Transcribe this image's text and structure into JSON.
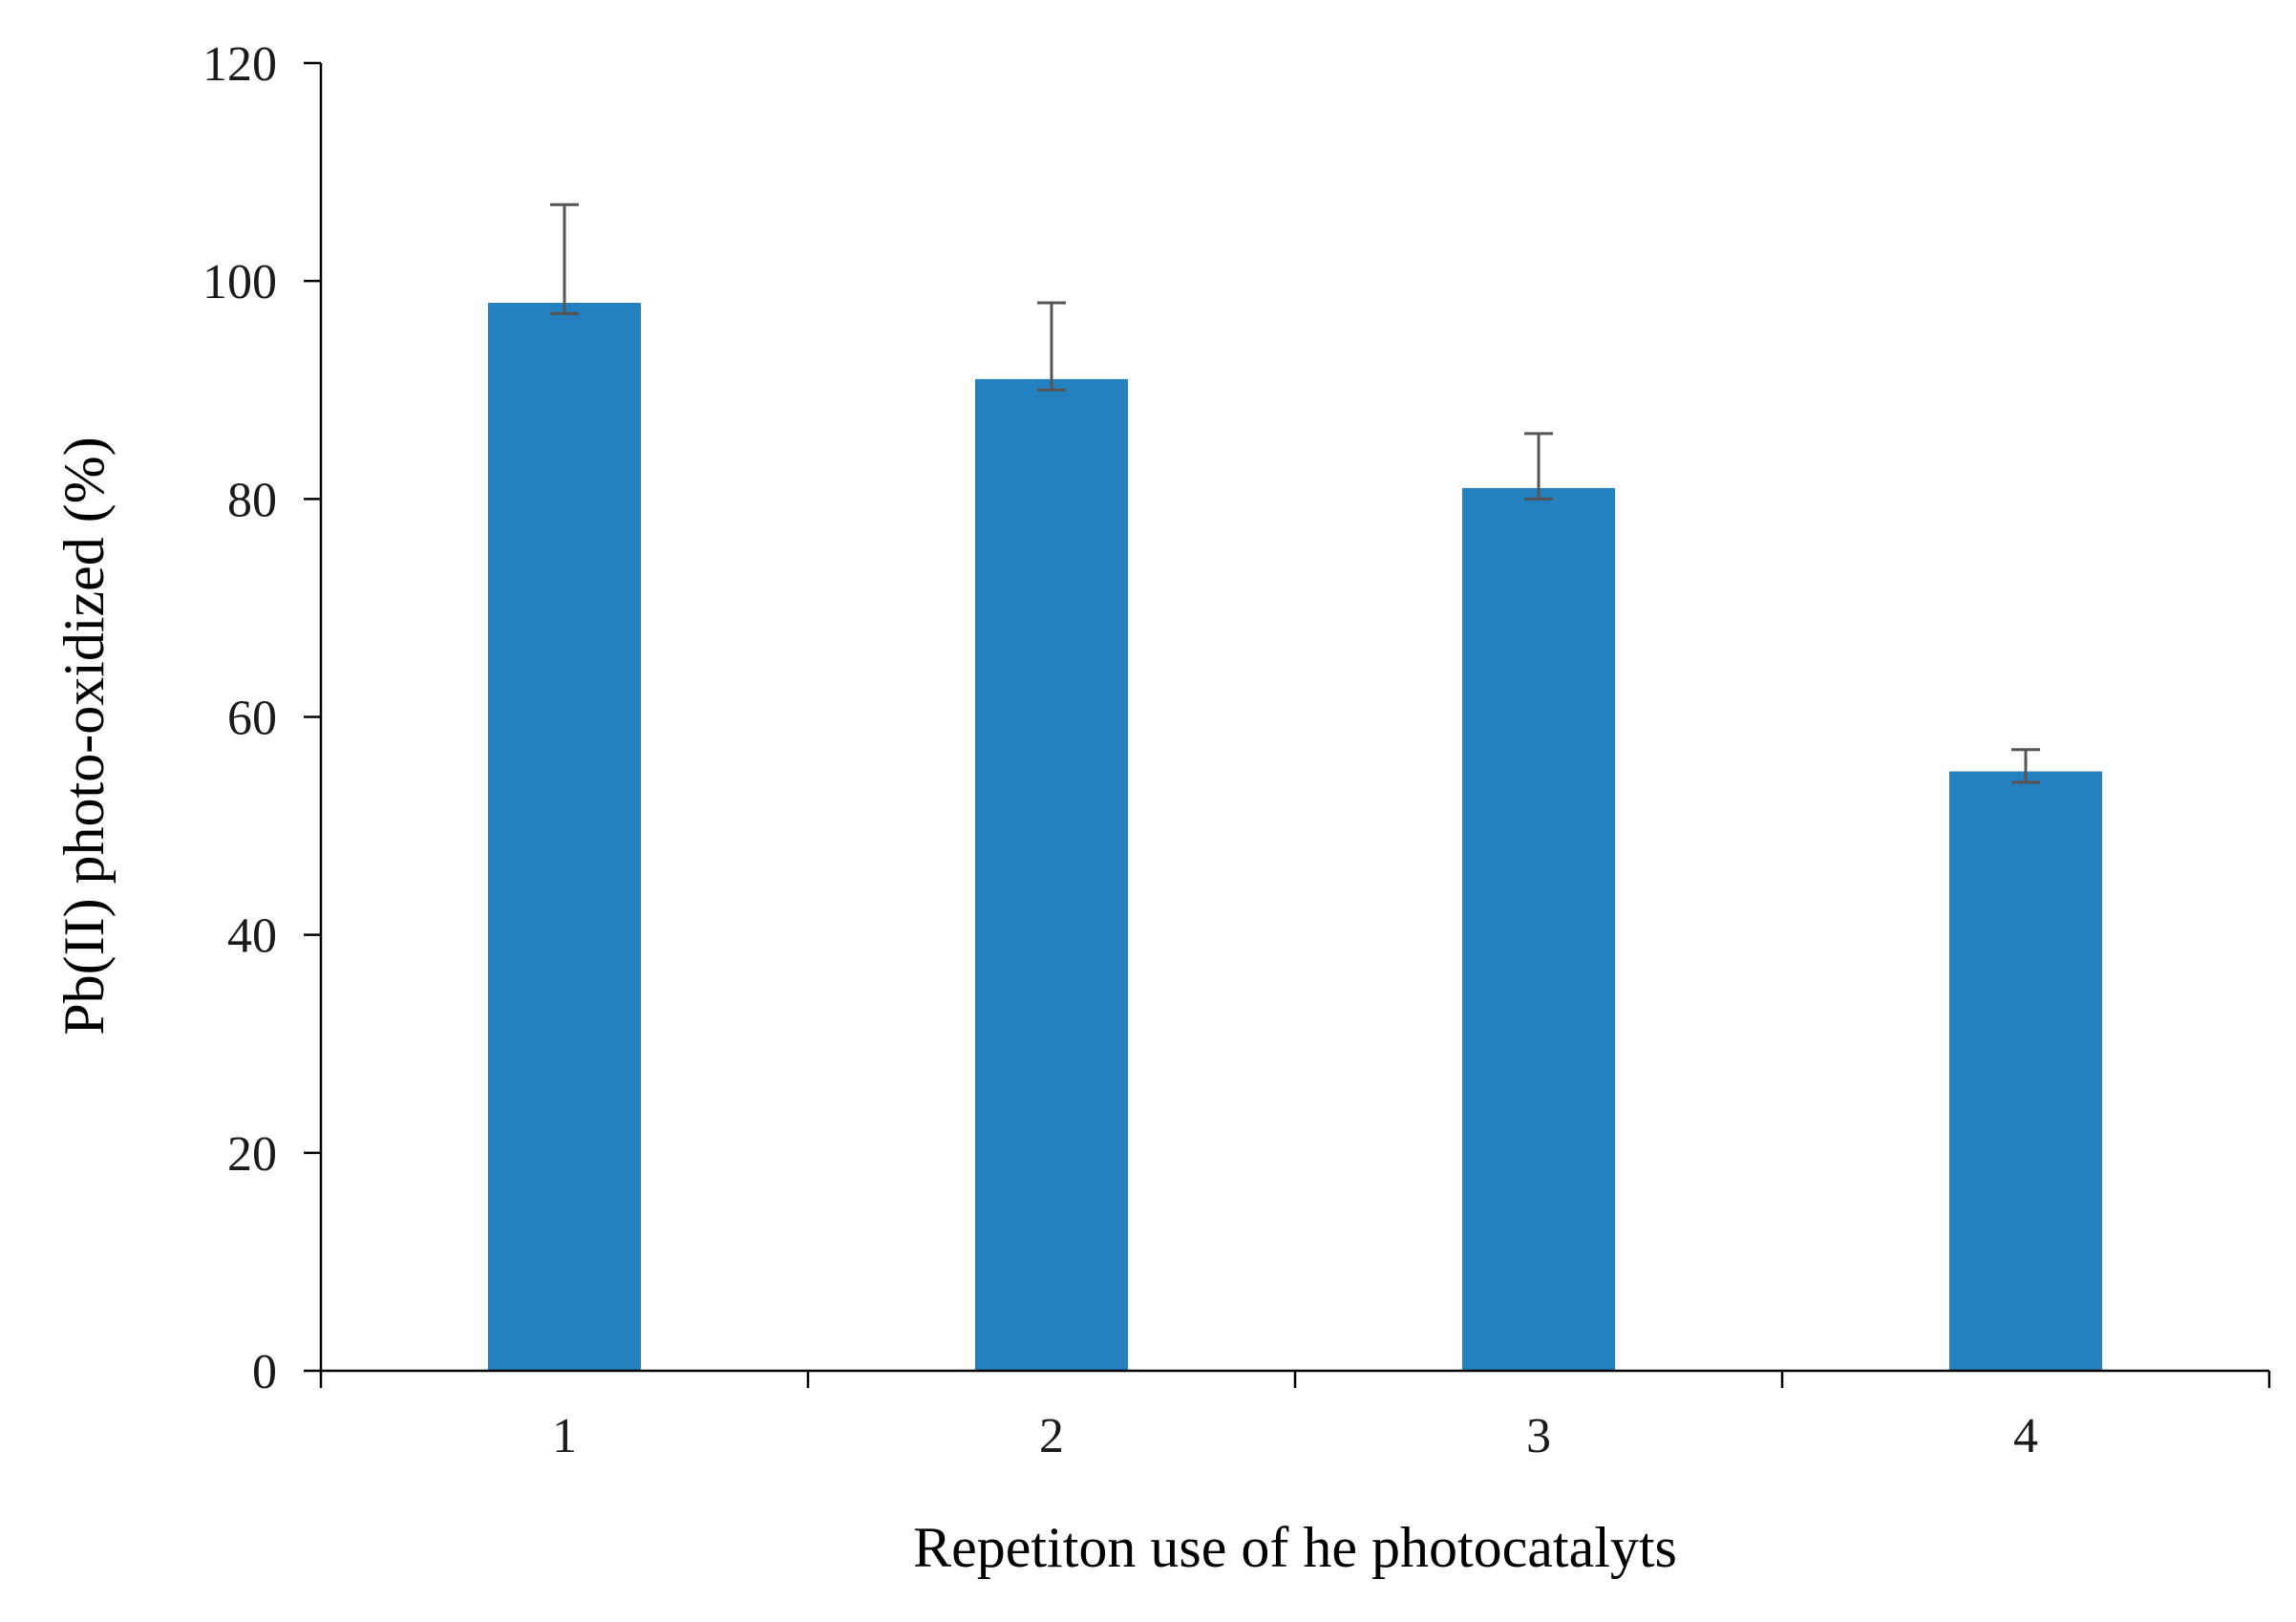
{
  "chart_data": {
    "type": "bar",
    "title": "",
    "xlabel": "Repetiton use of he photocatalyts",
    "ylabel": "Pb(II) photo-oxidized (%)",
    "categories": [
      "1",
      "2",
      "3",
      "4"
    ],
    "values": [
      98,
      91,
      81,
      55
    ],
    "error_upper": [
      107,
      98,
      86,
      57
    ],
    "error_lower": [
      97,
      90,
      80,
      54
    ],
    "ylim": [
      0,
      120
    ],
    "yticks": [
      "0",
      "20",
      "40",
      "60",
      "80",
      "100",
      "120"
    ],
    "ytick_values": [
      0,
      20,
      40,
      60,
      80,
      100,
      120
    ],
    "grid": false,
    "legend": "none",
    "bar_color": "#2580BF",
    "error_color": "#555555"
  }
}
